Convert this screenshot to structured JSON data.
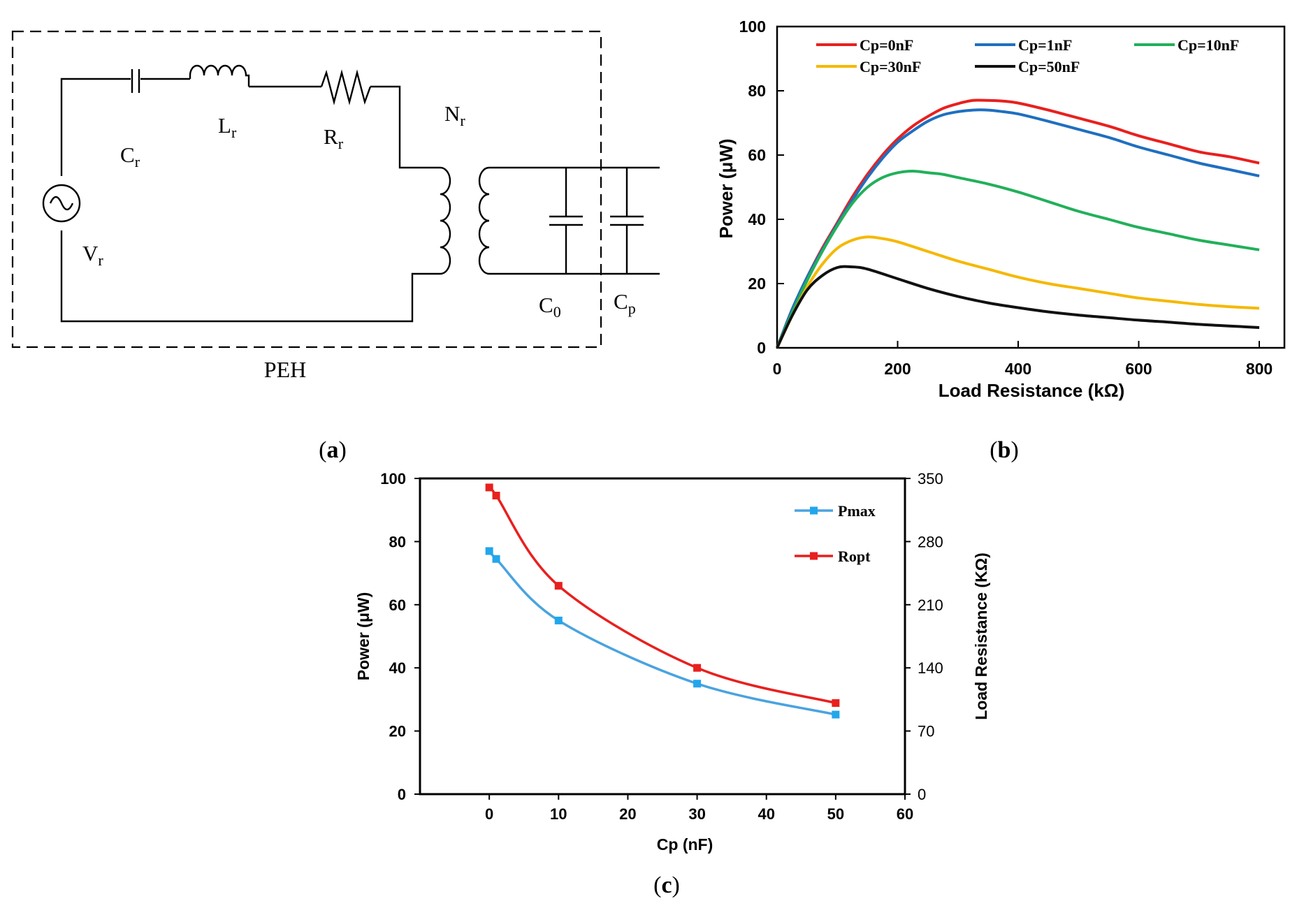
{
  "panel_a": {
    "caption": "(a)",
    "caption_letter": "a",
    "box_label": "PEH",
    "components": {
      "cr": {
        "main": "C",
        "sub": "r"
      },
      "lr": {
        "main": "L",
        "sub": "r"
      },
      "rr": {
        "main": "R",
        "sub": "r"
      },
      "nr": {
        "main": "N",
        "sub": "r"
      },
      "vr": {
        "main": "V",
        "sub": "r"
      },
      "c0": {
        "main": "C",
        "sub": "0"
      },
      "cp": {
        "main": "C",
        "sub": "p"
      }
    }
  },
  "panel_b": {
    "caption": "(b)",
    "caption_letter": "b"
  },
  "panel_c": {
    "caption": "(c)",
    "caption_letter": "c"
  },
  "chart_data": [
    {
      "id": "b",
      "type": "line",
      "title": "",
      "xlabel": "Load Resistance (kΩ)",
      "ylabel": "Power (μW)",
      "xlim": [
        0,
        800
      ],
      "ylim": [
        0,
        100
      ],
      "xticks": [
        0,
        200,
        400,
        600,
        800
      ],
      "yticks": [
        0,
        20,
        40,
        60,
        80,
        100
      ],
      "grid": false,
      "legend": "top",
      "series": [
        {
          "name": "Cp=0nF",
          "color": "#e8201e",
          "x": [
            0,
            25,
            50,
            75,
            100,
            125,
            150,
            175,
            200,
            225,
            250,
            275,
            300,
            325,
            350,
            375,
            400,
            450,
            500,
            550,
            600,
            650,
            700,
            750,
            800
          ],
          "y": [
            0,
            12,
            22,
            31,
            39,
            47,
            54,
            60,
            65,
            69,
            72,
            74.5,
            76,
            77,
            77,
            76.8,
            76.2,
            74,
            71.5,
            69,
            66,
            63.5,
            61,
            59.5,
            57.5
          ]
        },
        {
          "name": "Cp=1nF",
          "color": "#1f6fc0",
          "x": [
            0,
            25,
            50,
            75,
            100,
            125,
            150,
            175,
            200,
            225,
            250,
            275,
            300,
            325,
            350,
            375,
            400,
            450,
            500,
            550,
            600,
            650,
            700,
            750,
            800
          ],
          "y": [
            0,
            12,
            22,
            30.5,
            38.5,
            46,
            53,
            59,
            64,
            67.5,
            70.5,
            72.5,
            73.5,
            74,
            74,
            73.5,
            72.8,
            70.5,
            68,
            65.5,
            62.5,
            60,
            57.5,
            55.5,
            53.5
          ]
        },
        {
          "name": "Cp=10nF",
          "color": "#22b05a",
          "x": [
            0,
            25,
            50,
            75,
            100,
            125,
            150,
            175,
            200,
            225,
            250,
            275,
            300,
            350,
            400,
            450,
            500,
            550,
            600,
            650,
            700,
            750,
            800
          ],
          "y": [
            0,
            11,
            21,
            30,
            38,
            45,
            50,
            53,
            54.5,
            55,
            54.5,
            54,
            53,
            51,
            48.5,
            45.5,
            42.5,
            40,
            37.5,
            35.5,
            33.5,
            32,
            30.5
          ]
        },
        {
          "name": "Cp=30nF",
          "color": "#f5b800",
          "x": [
            0,
            25,
            50,
            75,
            100,
            125,
            150,
            175,
            200,
            250,
            300,
            350,
            400,
            450,
            500,
            550,
            600,
            650,
            700,
            750,
            800
          ],
          "y": [
            0,
            10,
            19,
            26,
            31,
            33.5,
            34.5,
            34,
            33,
            30,
            27,
            24.5,
            22,
            20,
            18.5,
            17,
            15.5,
            14.5,
            13.5,
            12.8,
            12.3
          ]
        },
        {
          "name": "Cp=50nF",
          "color": "#111111",
          "x": [
            0,
            25,
            50,
            75,
            100,
            125,
            150,
            200,
            250,
            300,
            350,
            400,
            450,
            500,
            550,
            600,
            650,
            700,
            750,
            800
          ],
          "y": [
            0,
            10,
            18,
            22.5,
            25,
            25.2,
            24.5,
            21.5,
            18.5,
            16,
            14,
            12.5,
            11.2,
            10.2,
            9.4,
            8.6,
            8,
            7.3,
            6.8,
            6.3
          ]
        }
      ]
    },
    {
      "id": "c",
      "type": "line",
      "title": "",
      "xlabel": "Cp (nF)",
      "ylabel": "Power (μW)",
      "y2label": "Load Resistance (KΩ)",
      "xlim": [
        -10,
        60
      ],
      "ylim": [
        0,
        100
      ],
      "y2lim": [
        0,
        350
      ],
      "xticks": [
        0,
        10,
        20,
        30,
        40,
        50,
        60
      ],
      "yticks": [
        0,
        20,
        40,
        60,
        80,
        100
      ],
      "y2ticks": [
        0,
        70,
        140,
        210,
        280,
        350
      ],
      "grid": false,
      "legend": "right",
      "series": [
        {
          "name": "Pmax",
          "color": "#4aa3e0",
          "marker_color": "#22a6ec",
          "axis": "left",
          "x": [
            0,
            1,
            10,
            30,
            50
          ],
          "y": [
            77,
            74.5,
            55,
            35,
            25.2
          ]
        },
        {
          "name": "Ropt",
          "color": "#e8201e",
          "marker_color": "#e8201e",
          "axis": "right",
          "x": [
            0,
            1,
            10,
            30,
            50
          ],
          "y": [
            340,
            331,
            231,
            140,
            101
          ]
        }
      ]
    }
  ]
}
